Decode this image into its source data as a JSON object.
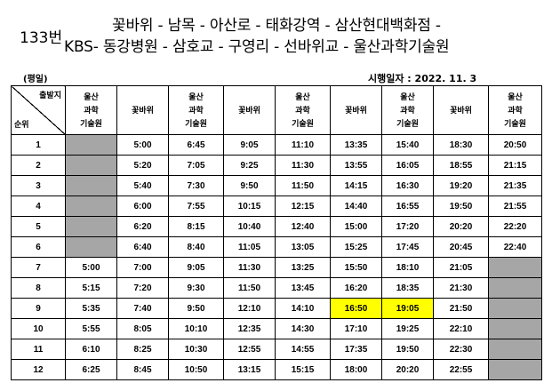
{
  "route_number": "133번",
  "route_line1": "꽃바위 - 남목 - 아산로 - 태화강역 - 삼산현대백화점 -",
  "route_line2": "KBS- 동강병원 - 삼호교 - 구영리 - 선바위교 - 울산과학기술원",
  "day_type": "(평일)",
  "effective_date": "시행일자 : 2022. 11. 3",
  "table": {
    "corner_top": "출발지",
    "corner_bottom": "순위",
    "headers": [
      [
        "울산",
        "과학",
        "기술원"
      ],
      [
        "꽃바위"
      ],
      [
        "울산",
        "과학",
        "기술원"
      ],
      [
        "꽃바위"
      ],
      [
        "울산",
        "과학",
        "기술원"
      ],
      [
        "꽃바위"
      ],
      [
        "울산",
        "과학",
        "기술원"
      ],
      [
        "꽃바위"
      ],
      [
        "울산",
        "과학",
        "기술원"
      ]
    ],
    "rows": [
      {
        "no": "1",
        "times": [
          "",
          "5:00",
          "6:45",
          "9:05",
          "11:10",
          "13:35",
          "15:40",
          "18:30",
          "20:50"
        ]
      },
      {
        "no": "2",
        "times": [
          "",
          "5:20",
          "7:05",
          "9:25",
          "11:30",
          "13:55",
          "16:05",
          "18:55",
          "21:15"
        ]
      },
      {
        "no": "3",
        "times": [
          "",
          "5:40",
          "7:30",
          "9:50",
          "11:50",
          "14:15",
          "16:30",
          "19:20",
          "21:35"
        ]
      },
      {
        "no": "4",
        "times": [
          "",
          "6:00",
          "7:55",
          "10:15",
          "12:15",
          "14:40",
          "16:55",
          "19:50",
          "21:55"
        ]
      },
      {
        "no": "5",
        "times": [
          "",
          "6:20",
          "8:15",
          "10:40",
          "12:40",
          "15:00",
          "17:20",
          "20:20",
          "22:20"
        ]
      },
      {
        "no": "6",
        "times": [
          "",
          "6:40",
          "8:40",
          "11:05",
          "13:05",
          "15:25",
          "17:45",
          "20:45",
          "22:40"
        ]
      },
      {
        "no": "7",
        "times": [
          "5:00",
          "7:00",
          "9:05",
          "11:30",
          "13:25",
          "15:50",
          "18:10",
          "21:05",
          ""
        ]
      },
      {
        "no": "8",
        "times": [
          "5:15",
          "7:20",
          "9:30",
          "11:50",
          "13:45",
          "16:20",
          "18:35",
          "21:30",
          ""
        ]
      },
      {
        "no": "9",
        "times": [
          "5:35",
          "7:40",
          "9:50",
          "12:10",
          "14:10",
          "16:50",
          "19:05",
          "21:50",
          ""
        ]
      },
      {
        "no": "10",
        "times": [
          "5:55",
          "8:05",
          "10:10",
          "12:35",
          "14:30",
          "17:10",
          "19:25",
          "22:10",
          ""
        ]
      },
      {
        "no": "11",
        "times": [
          "6:10",
          "8:25",
          "10:30",
          "12:55",
          "14:55",
          "17:35",
          "19:50",
          "22:30",
          ""
        ]
      },
      {
        "no": "12",
        "times": [
          "6:25",
          "8:45",
          "10:50",
          "13:15",
          "15:15",
          "18:00",
          "20:20",
          "22:55",
          ""
        ]
      }
    ],
    "highlight_color": "#ffff00",
    "empty_cell_color": "#a6a6a6"
  }
}
